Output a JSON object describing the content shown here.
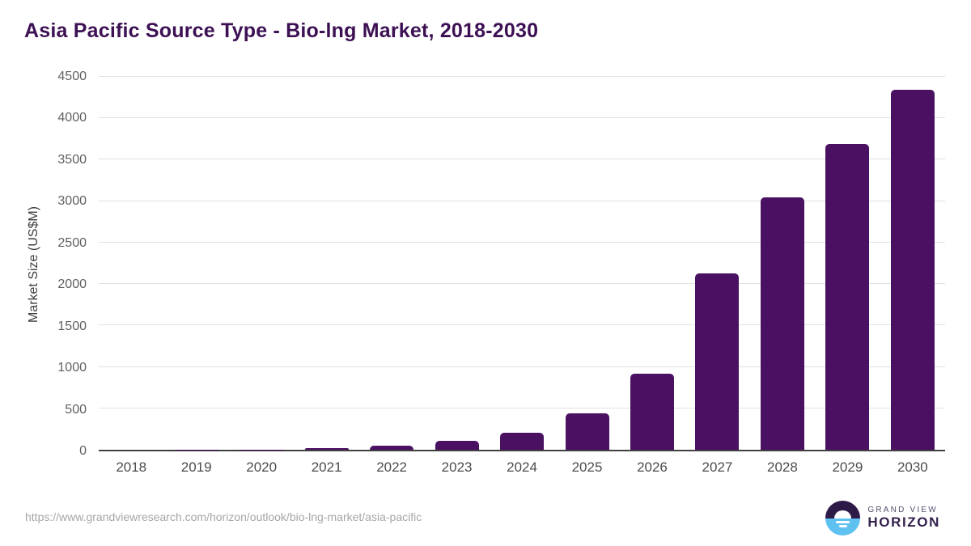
{
  "title": "Asia Pacific Source Type - Bio-lng Market, 2018-2030",
  "colors": {
    "bar": "#4a1163",
    "title": "#3c1053",
    "gridline": "#e2e2e2",
    "axis_line": "#404040",
    "tick_label": "#5f5f5f",
    "brand_purple": "#2e1a47",
    "brand_blue": "#5ec1f0"
  },
  "chart_data": {
    "type": "bar",
    "title": "Asia Pacific Source Type - Bio-lng Market, 2018-2030",
    "categories": [
      "2018",
      "2019",
      "2020",
      "2021",
      "2022",
      "2023",
      "2024",
      "2025",
      "2026",
      "2027",
      "2028",
      "2029",
      "2030"
    ],
    "values": [
      0.5,
      1.5,
      4,
      22,
      50,
      107,
      204,
      437,
      913,
      2128,
      3042,
      3693,
      4344
    ],
    "xlabel": "",
    "ylabel": "Market Size (US$M)",
    "ylim": [
      0,
      4500
    ],
    "ytick_step": 500,
    "grid": true,
    "legend": false,
    "bar_color": "#4a1163"
  },
  "footer": {
    "source_url": "https://www.grandviewresearch.com/horizon/outlook/bio-lng-market/asia-pacific",
    "brand_top": "GRAND VIEW",
    "brand_bottom": "HORIZON"
  }
}
